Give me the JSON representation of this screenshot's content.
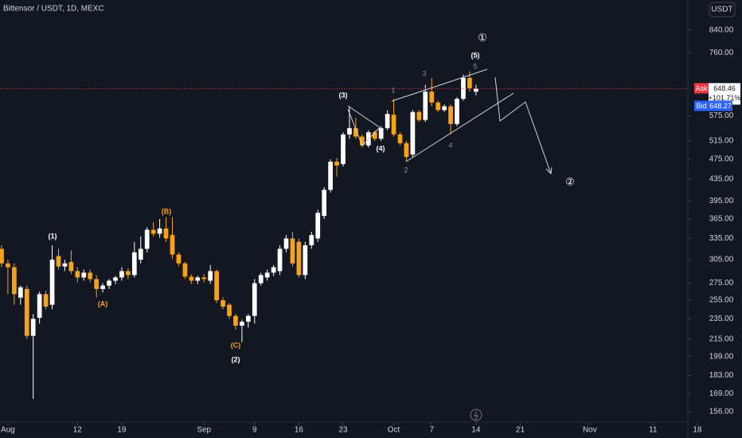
{
  "chart_data": {
    "type": "candlestick",
    "title": "Bittensor / USDT, 1D, MEXC",
    "currency": "USDT",
    "x": [
      -1,
      0,
      1,
      2,
      3,
      4,
      5,
      6,
      7,
      8,
      9,
      10,
      11,
      12,
      13,
      14,
      15,
      16,
      17,
      18,
      19,
      20,
      21,
      22,
      23,
      24,
      25,
      26,
      27,
      28,
      29,
      30,
      31,
      32,
      33,
      34,
      35,
      36,
      37,
      38,
      39,
      40,
      41,
      42,
      43,
      44,
      45,
      46,
      47,
      48,
      49,
      50,
      51,
      52,
      53,
      54,
      55,
      56,
      57,
      58,
      59,
      60,
      61,
      62,
      63,
      64,
      65,
      66,
      67,
      68,
      69,
      70,
      71,
      72,
      73,
      74
    ],
    "open": [
      320,
      300,
      295,
      258,
      268,
      218,
      236,
      262,
      250,
      310,
      296,
      302,
      290,
      282,
      288,
      280,
      268,
      272,
      278,
      282,
      290,
      285,
      305,
      320,
      348,
      342,
      350,
      340,
      312,
      300,
      283,
      278,
      282,
      278,
      290,
      255,
      250,
      238,
      228,
      232,
      238,
      275,
      282,
      288,
      290,
      320,
      335,
      330,
      285,
      325,
      335,
      370,
      415,
      470,
      465,
      530,
      545,
      525,
      505,
      535,
      520,
      545,
      578,
      530,
      510,
      485,
      585,
      565,
      640,
      610,
      590,
      600,
      555,
      620,
      680,
      640
    ],
    "high": [
      325,
      305,
      300,
      272,
      272,
      240,
      265,
      266,
      325,
      320,
      305,
      318,
      295,
      292,
      292,
      285,
      275,
      280,
      284,
      295,
      294,
      330,
      338,
      352,
      360,
      365,
      368,
      368,
      315,
      302,
      286,
      284,
      286,
      298,
      292,
      258,
      252,
      240,
      234,
      240,
      280,
      288,
      292,
      298,
      325,
      340,
      345,
      335,
      330,
      345,
      380,
      420,
      475,
      478,
      535,
      600,
      570,
      530,
      540,
      540,
      550,
      590,
      620,
      535,
      515,
      590,
      590,
      660,
      680,
      615,
      605,
      605,
      625,
      690,
      700,
      660
    ],
    "low": [
      295,
      262,
      250,
      250,
      215,
      165,
      230,
      245,
      245,
      292,
      290,
      286,
      276,
      278,
      276,
      258,
      264,
      268,
      274,
      278,
      280,
      282,
      300,
      315,
      338,
      336,
      330,
      306,
      296,
      280,
      274,
      274,
      276,
      274,
      252,
      245,
      235,
      224,
      212,
      226,
      230,
      272,
      278,
      284,
      285,
      315,
      296,
      282,
      280,
      320,
      330,
      365,
      410,
      440,
      460,
      520,
      520,
      500,
      500,
      515,
      515,
      540,
      525,
      505,
      470,
      480,
      560,
      560,
      600,
      585,
      585,
      530,
      550,
      615,
      640,
      630
    ],
    "close": [
      300,
      295,
      262,
      270,
      218,
      235,
      262,
      248,
      305,
      296,
      300,
      290,
      282,
      288,
      280,
      268,
      272,
      278,
      282,
      290,
      285,
      315,
      320,
      348,
      342,
      350,
      335,
      312,
      300,
      283,
      278,
      282,
      280,
      290,
      255,
      248,
      238,
      228,
      232,
      238,
      275,
      285,
      288,
      295,
      320,
      335,
      300,
      285,
      325,
      340,
      375,
      415,
      470,
      462,
      530,
      545,
      525,
      505,
      535,
      520,
      545,
      580,
      530,
      510,
      480,
      585,
      565,
      640,
      610,
      590,
      600,
      555,
      620,
      680,
      650,
      648.46
    ],
    "up_color": "#ffffff",
    "down_color": "#f7a21b",
    "log_scale": true,
    "xlim": [
      -1.25,
      107.5
    ],
    "xticks": [
      {
        "value": 0,
        "label": "Aug"
      },
      {
        "value": 11,
        "label": "12"
      },
      {
        "value": 18,
        "label": "19"
      },
      {
        "value": 31,
        "label": "Sep"
      },
      {
        "value": 39,
        "label": "9"
      },
      {
        "value": 46,
        "label": "16"
      },
      {
        "value": 53,
        "label": "23"
      },
      {
        "value": 61,
        "label": "Oct"
      },
      {
        "value": 67,
        "label": "7"
      },
      {
        "value": 74,
        "label": "14"
      },
      {
        "value": 81,
        "label": "21"
      },
      {
        "value": 92,
        "label": "Nov"
      },
      {
        "value": 102,
        "label": "11"
      },
      {
        "value": 109,
        "label": "18"
      }
    ],
    "ylim": [
      149,
      959
    ],
    "yticks": [
      {
        "value": 840,
        "label": "840.00"
      },
      {
        "value": 760,
        "label": "760.00"
      },
      {
        "value": 575,
        "label": "575.00"
      },
      {
        "value": 515,
        "label": "515.00"
      },
      {
        "value": 475,
        "label": "475.00"
      },
      {
        "value": 435,
        "label": "435.00"
      },
      {
        "value": 395,
        "label": "395.00"
      },
      {
        "value": 365,
        "label": "365.00"
      },
      {
        "value": 335,
        "label": "335.00"
      },
      {
        "value": 305,
        "label": "305.00"
      },
      {
        "value": 275,
        "label": "275.00"
      },
      {
        "value": 255,
        "label": "255.00"
      },
      {
        "value": 235,
        "label": "235.00"
      },
      {
        "value": 215,
        "label": "215.00"
      },
      {
        "value": 199,
        "label": "199.00"
      },
      {
        "value": 183,
        "label": "183.00"
      },
      {
        "value": 169,
        "label": "169.00"
      },
      {
        "value": 156,
        "label": "156.00"
      }
    ],
    "ask": {
      "label": "Ask",
      "value": 648.46
    },
    "bid": {
      "label": "Bid",
      "value": 648.27
    },
    "change": "+101.71%",
    "annotations": [
      "①",
      "(5)",
      "5",
      "3",
      "1",
      "(3)",
      "(4)",
      "2",
      "4",
      "(1)",
      "(B)",
      "(A)",
      "(C)",
      "(2)",
      "②"
    ]
  }
}
